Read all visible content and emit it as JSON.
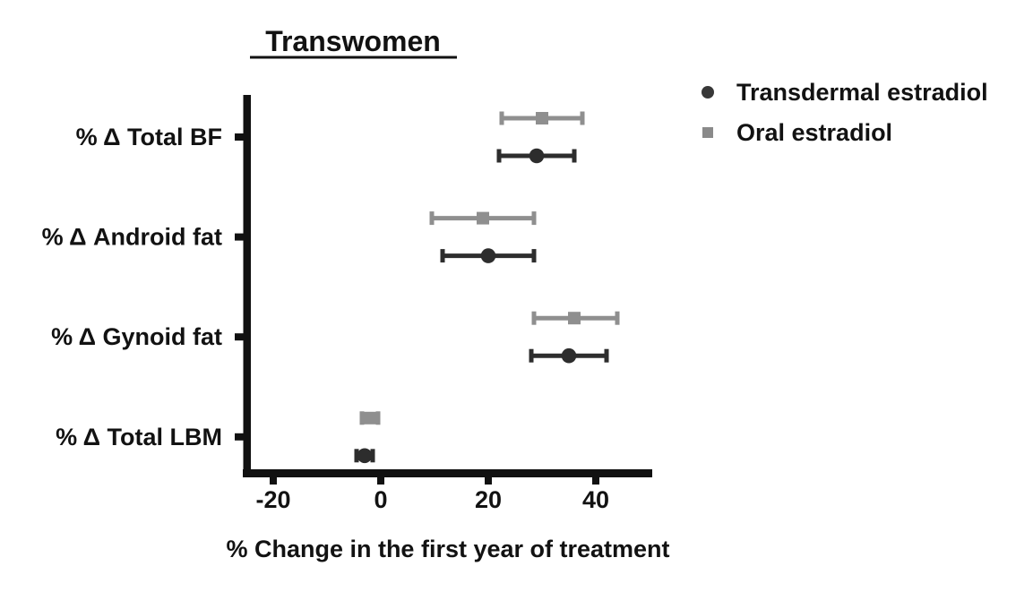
{
  "chart_data": {
    "type": "scatter",
    "title": "Transwomen",
    "xlabel": "% Change in the first year of treatment",
    "categories": [
      "% Δ Total BF",
      "% Δ Android fat",
      "% Δ Gynoid fat",
      "% Δ Total LBM"
    ],
    "xlim": [
      -25,
      50
    ],
    "xticks": [
      -20,
      0,
      20,
      40
    ],
    "grid": false,
    "legend_position": "top-right",
    "series": [
      {
        "name": "Transdermal estradiol",
        "marker": "circle",
        "color": "#2d2d2d",
        "values": [
          29,
          20,
          35,
          -3
        ],
        "ci_low": [
          22,
          11.5,
          28,
          -4.5
        ],
        "ci_high": [
          36,
          28.5,
          42,
          -1.5
        ]
      },
      {
        "name": "Oral estradiol",
        "marker": "square",
        "color": "#8f8f8f",
        "values": [
          30,
          19,
          36,
          -2
        ],
        "ci_low": [
          22.5,
          9.5,
          28.5,
          -3.5
        ],
        "ci_high": [
          37.5,
          28.5,
          44,
          -0.5
        ]
      }
    ],
    "axis_color": "#111111"
  }
}
